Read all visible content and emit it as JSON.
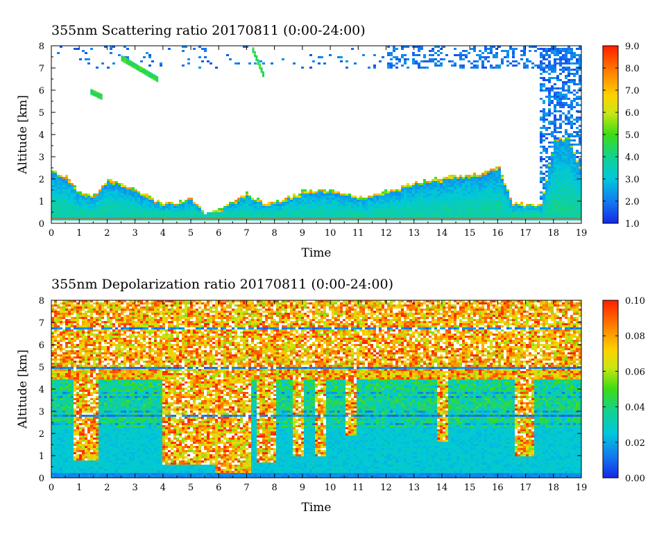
{
  "chart_data": [
    {
      "type": "heatmap",
      "title": "355nm Scattering ratio  20170811 (0:00-24:00)",
      "xlabel": "Time",
      "ylabel": "Altitude [km]",
      "xlim": [
        0,
        19
      ],
      "ylim": [
        0,
        8
      ],
      "x_ticks": [
        "0",
        "1",
        "2",
        "3",
        "4",
        "5",
        "6",
        "7",
        "8",
        "9",
        "10",
        "11",
        "12",
        "13",
        "14",
        "15",
        "16",
        "17",
        "18",
        "19"
      ],
      "y_ticks": [
        "0",
        "1",
        "2",
        "3",
        "4",
        "5",
        "6",
        "7",
        "8"
      ],
      "colorbar": {
        "min": 1.0,
        "max": 9.0,
        "labels": [
          "1.0",
          "2.0",
          "3.0",
          "4.0",
          "5.0",
          "6.0",
          "7.0",
          "8.0",
          "9.0"
        ]
      },
      "boundary_layer_top_km": {
        "x": [
          0,
          0.5,
          1,
          1.5,
          2,
          2.5,
          3,
          3.5,
          4,
          4.5,
          5,
          5.5,
          6,
          6.5,
          7,
          7.5,
          8,
          9,
          10,
          11,
          12,
          13,
          13.5,
          14,
          14.5,
          15,
          15.5,
          16,
          16.5,
          17,
          17.5,
          18,
          18.5,
          19
        ],
        "y": [
          2.4,
          2.2,
          1.4,
          1.3,
          2.1,
          1.8,
          1.6,
          1.2,
          1.0,
          1.0,
          1.2,
          0.5,
          0.7,
          1.1,
          1.4,
          1.0,
          1.0,
          1.5,
          1.6,
          1.2,
          1.5,
          1.9,
          2.0,
          2.1,
          2.2,
          2.2,
          2.4,
          2.6,
          1.0,
          0.9,
          0.9,
          3.8,
          4.0,
          2.2
        ]
      },
      "elevated_layers": [
        {
          "x0": 2.5,
          "x1": 3.8,
          "y0": 6.4,
          "y1": 7.6
        },
        {
          "x0": 1.4,
          "x1": 1.8,
          "y0": 5.7,
          "y1": 6.0
        },
        {
          "x0": 7.2,
          "x1": 7.6,
          "y0": 6.5,
          "y1": 8.0
        }
      ]
    },
    {
      "type": "heatmap",
      "title": "355nm Depolarization ratio  20170811 (0:00-24:00)",
      "xlabel": "Time",
      "ylabel": "Altitude [km]",
      "xlim": [
        0,
        19
      ],
      "ylim": [
        0,
        8
      ],
      "x_ticks": [
        "0",
        "1",
        "2",
        "3",
        "4",
        "5",
        "6",
        "7",
        "8",
        "9",
        "10",
        "11",
        "12",
        "13",
        "14",
        "15",
        "16",
        "17",
        "18",
        "19"
      ],
      "y_ticks": [
        "0",
        "1",
        "2",
        "3",
        "4",
        "5",
        "6",
        "7",
        "8"
      ],
      "colorbar": {
        "min": 0.0,
        "max": 0.1,
        "labels": [
          "0.00",
          "0.02",
          "0.04",
          "0.06",
          "0.08",
          "0.10"
        ]
      },
      "high_depol_plumes": [
        {
          "x0": 0.7,
          "x1": 1.6,
          "y_bottom": 0.8
        },
        {
          "x0": 3.9,
          "x1": 5.8,
          "y_bottom": 0.6
        },
        {
          "x0": 5.8,
          "x1": 7.1,
          "y_bottom": 0.3
        },
        {
          "x0": 7.3,
          "x1": 8.0,
          "y_bottom": 0.7
        },
        {
          "x0": 8.6,
          "x1": 9.0,
          "y_bottom": 1.0
        },
        {
          "x0": 9.4,
          "x1": 9.8,
          "y_bottom": 1.0
        },
        {
          "x0": 10.5,
          "x1": 10.9,
          "y_bottom": 2.0
        },
        {
          "x0": 13.8,
          "x1": 14.2,
          "y_bottom": 1.7
        },
        {
          "x0": 16.6,
          "x1": 17.3,
          "y_bottom": 1.0
        }
      ]
    }
  ]
}
